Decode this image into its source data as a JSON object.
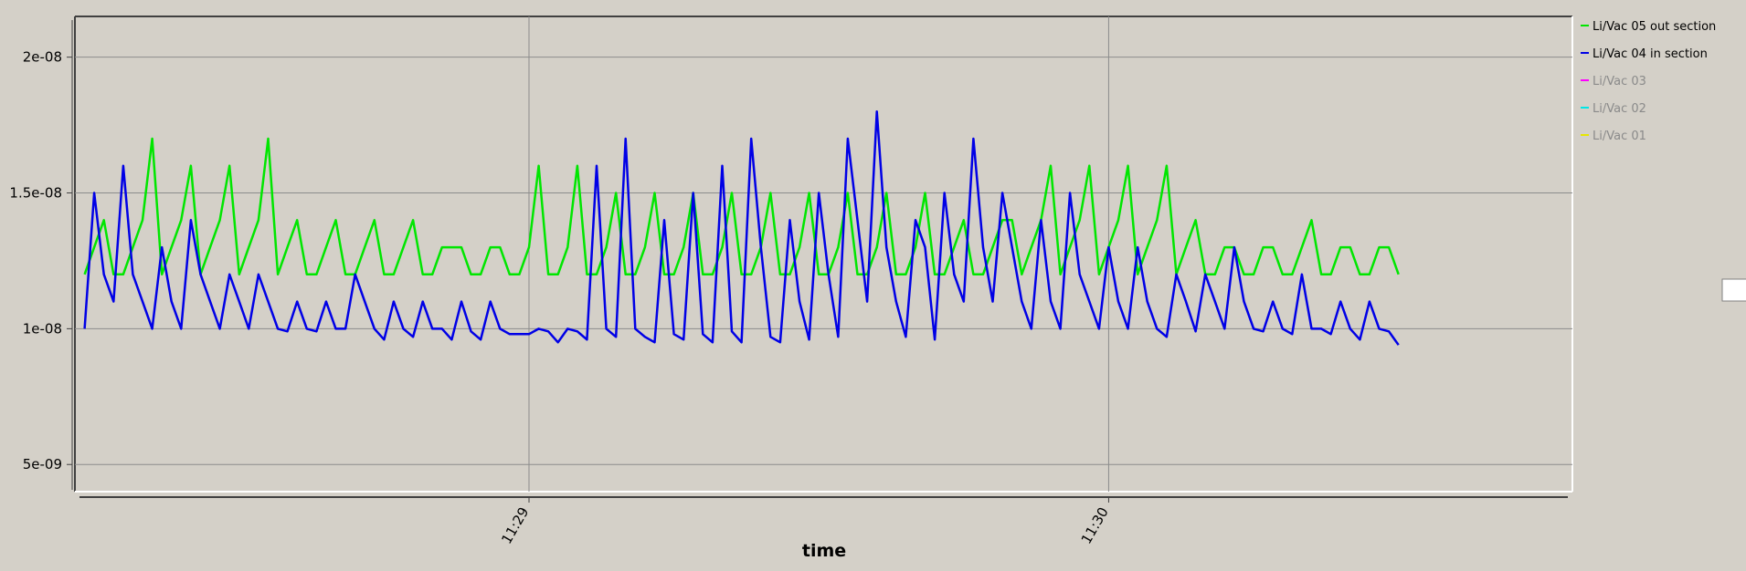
{
  "chart_data": {
    "type": "line",
    "x_label": "time",
    "x": [
      41294,
      41295,
      41296,
      41297,
      41298,
      41299,
      41300,
      41301,
      41302,
      41303,
      41304,
      41305,
      41306,
      41307,
      41308,
      41309,
      41310,
      41311,
      41312,
      41313,
      41314,
      41315,
      41316,
      41317,
      41318,
      41319,
      41320,
      41321,
      41322,
      41323,
      41324,
      41325,
      41326,
      41327,
      41328,
      41329,
      41330,
      41331,
      41332,
      41333,
      41334,
      41335,
      41336,
      41337,
      41338,
      41339,
      41340,
      41341,
      41342,
      41343,
      41344,
      41345,
      41346,
      41347,
      41348,
      41349,
      41350,
      41351,
      41352,
      41353,
      41354,
      41355,
      41356,
      41357,
      41358,
      41359,
      41360,
      41361,
      41362,
      41363,
      41364,
      41365,
      41366,
      41367,
      41368,
      41369,
      41370,
      41371,
      41372,
      41373,
      41374,
      41375,
      41376,
      41377,
      41378,
      41379,
      41380,
      41381,
      41382,
      41383,
      41384,
      41385,
      41386,
      41387,
      41388,
      41389,
      41390,
      41391,
      41392,
      41393,
      41394,
      41395,
      41396,
      41397,
      41398,
      41399,
      41400,
      41401,
      41402,
      41403,
      41404,
      41405,
      41406,
      41407,
      41408,
      41409,
      41410,
      41411,
      41412,
      41413,
      41414,
      41415,
      41416,
      41417,
      41418,
      41419,
      41420,
      41421,
      41422,
      41423,
      41424,
      41425,
      41426,
      41427,
      41428,
      41429,
      41430
    ],
    "series": [
      {
        "name": "Li/Vac 05 out section",
        "color": "#00e600",
        "values": [
          1.2e-08,
          1.3e-08,
          1.4e-08,
          1.2e-08,
          1.2e-08,
          1.3e-08,
          1.4e-08,
          1.7e-08,
          1.2e-08,
          1.3e-08,
          1.4e-08,
          1.6e-08,
          1.2e-08,
          1.3e-08,
          1.4e-08,
          1.6e-08,
          1.2e-08,
          1.3e-08,
          1.4e-08,
          1.7e-08,
          1.2e-08,
          1.3e-08,
          1.4e-08,
          1.2e-08,
          1.2e-08,
          1.3e-08,
          1.4e-08,
          1.2e-08,
          1.2e-08,
          1.3e-08,
          1.4e-08,
          1.2e-08,
          1.2e-08,
          1.3e-08,
          1.4e-08,
          1.2e-08,
          1.2e-08,
          1.3e-08,
          1.3e-08,
          1.3e-08,
          1.2e-08,
          1.2e-08,
          1.3e-08,
          1.3e-08,
          1.2e-08,
          1.2e-08,
          1.3e-08,
          1.6e-08,
          1.2e-08,
          1.2e-08,
          1.3e-08,
          1.6e-08,
          1.2e-08,
          1.2e-08,
          1.3e-08,
          1.5e-08,
          1.2e-08,
          1.2e-08,
          1.3e-08,
          1.5e-08,
          1.2e-08,
          1.2e-08,
          1.3e-08,
          1.5e-08,
          1.2e-08,
          1.2e-08,
          1.3e-08,
          1.5e-08,
          1.2e-08,
          1.2e-08,
          1.3e-08,
          1.5e-08,
          1.2e-08,
          1.2e-08,
          1.3e-08,
          1.5e-08,
          1.2e-08,
          1.2e-08,
          1.3e-08,
          1.5e-08,
          1.2e-08,
          1.2e-08,
          1.3e-08,
          1.5e-08,
          1.2e-08,
          1.2e-08,
          1.3e-08,
          1.5e-08,
          1.2e-08,
          1.2e-08,
          1.3e-08,
          1.4e-08,
          1.2e-08,
          1.2e-08,
          1.3e-08,
          1.4e-08,
          1.4e-08,
          1.2e-08,
          1.3e-08,
          1.4e-08,
          1.6e-08,
          1.2e-08,
          1.3e-08,
          1.4e-08,
          1.6e-08,
          1.2e-08,
          1.3e-08,
          1.4e-08,
          1.6e-08,
          1.2e-08,
          1.3e-08,
          1.4e-08,
          1.6e-08,
          1.2e-08,
          1.3e-08,
          1.4e-08,
          1.2e-08,
          1.2e-08,
          1.3e-08,
          1.3e-08,
          1.2e-08,
          1.2e-08,
          1.3e-08,
          1.3e-08,
          1.2e-08,
          1.2e-08,
          1.3e-08,
          1.4e-08,
          1.2e-08,
          1.2e-08,
          1.3e-08,
          1.3e-08,
          1.2e-08,
          1.2e-08,
          1.3e-08,
          1.3e-08,
          1.2e-08
        ]
      },
      {
        "name": "Li/Vac 04 in section",
        "color": "#0000e6",
        "values": [
          1e-08,
          1.5e-08,
          1.2e-08,
          1.1e-08,
          1.6e-08,
          1.2e-08,
          1.1e-08,
          1e-08,
          1.3e-08,
          1.1e-08,
          1e-08,
          1.4e-08,
          1.2e-08,
          1.1e-08,
          1e-08,
          1.2e-08,
          1.1e-08,
          1e-08,
          1.2e-08,
          1.1e-08,
          1e-08,
          9.9e-09,
          1.1e-08,
          1e-08,
          9.9e-09,
          1.1e-08,
          1e-08,
          1e-08,
          1.2e-08,
          1.1e-08,
          1e-08,
          9.6e-09,
          1.1e-08,
          1e-08,
          9.7e-09,
          1.1e-08,
          1e-08,
          1e-08,
          9.6e-09,
          1.1e-08,
          9.9e-09,
          9.6e-09,
          1.1e-08,
          1e-08,
          9.8e-09,
          9.8e-09,
          9.8e-09,
          1e-08,
          9.9e-09,
          9.5e-09,
          1e-08,
          9.9e-09,
          9.6e-09,
          1.6e-08,
          1e-08,
          9.7e-09,
          1.7e-08,
          1e-08,
          9.7e-09,
          9.5e-09,
          1.4e-08,
          9.8e-09,
          9.6e-09,
          1.5e-08,
          9.8e-09,
          9.5e-09,
          1.6e-08,
          9.9e-09,
          9.5e-09,
          1.7e-08,
          1.3e-08,
          9.7e-09,
          9.5e-09,
          1.4e-08,
          1.1e-08,
          9.6e-09,
          1.5e-08,
          1.2e-08,
          9.7e-09,
          1.7e-08,
          1.4e-08,
          1.1e-08,
          1.8e-08,
          1.3e-08,
          1.1e-08,
          9.7e-09,
          1.4e-08,
          1.3e-08,
          9.6e-09,
          1.5e-08,
          1.2e-08,
          1.1e-08,
          1.7e-08,
          1.3e-08,
          1.1e-08,
          1.5e-08,
          1.3e-08,
          1.1e-08,
          1e-08,
          1.4e-08,
          1.1e-08,
          1e-08,
          1.5e-08,
          1.2e-08,
          1.1e-08,
          1e-08,
          1.3e-08,
          1.1e-08,
          1e-08,
          1.3e-08,
          1.1e-08,
          1e-08,
          9.7e-09,
          1.2e-08,
          1.1e-08,
          9.9e-09,
          1.2e-08,
          1.1e-08,
          1e-08,
          1.3e-08,
          1.1e-08,
          1e-08,
          9.9e-09,
          1.1e-08,
          1e-08,
          9.8e-09,
          1.2e-08,
          1e-08,
          1e-08,
          9.8e-09,
          1.1e-08,
          1e-08,
          9.6e-09,
          1.1e-08,
          1e-08,
          9.9e-09,
          9.4e-09
        ]
      }
    ],
    "inactive_series": [
      {
        "name": "Li/Vac 03",
        "color": "#ff00ff"
      },
      {
        "name": "Li/Vac 02",
        "color": "#00e6e6"
      },
      {
        "name": "Li/Vac 01",
        "color": "#e6e600"
      }
    ],
    "xlim": [
      41293,
      41448
    ],
    "xticks": [
      {
        "value": 41340,
        "label": "11:29"
      },
      {
        "value": 41400,
        "label": "11:30"
      }
    ],
    "ylim": [
      4e-09,
      2.15e-08
    ],
    "yticks": [
      {
        "value": 5e-09,
        "label": "5e-09"
      },
      {
        "value": 1e-08,
        "label": "1e-08"
      },
      {
        "value": 1.5e-08,
        "label": "1.5e-08"
      },
      {
        "value": 2e-08,
        "label": "2e-08"
      }
    ],
    "grid": true,
    "legend": "right"
  }
}
